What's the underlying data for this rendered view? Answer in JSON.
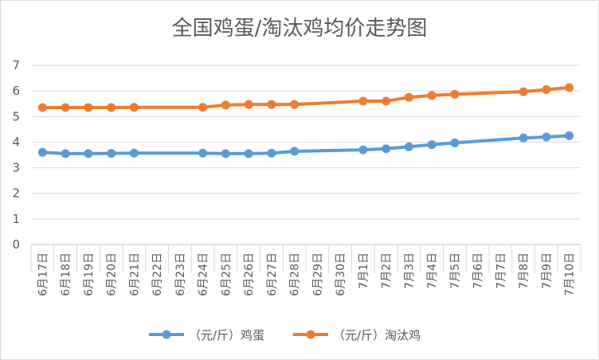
{
  "chart_data": {
    "type": "line",
    "title": "全国鸡蛋/淘汰鸡均价走势图",
    "xlabel": "",
    "ylabel": "",
    "ylim": [
      0,
      7
    ],
    "yticks": [
      0,
      1,
      2,
      3,
      4,
      5,
      6,
      7
    ],
    "grid": true,
    "legend_position": "bottom",
    "categories": [
      "6月17日",
      "6月18日",
      "6月19日",
      "6月20日",
      "6月21日",
      "6月22日",
      "6月23日",
      "6月24日",
      "6月25日",
      "6月26日",
      "6月27日",
      "6月28日",
      "6月29日",
      "6月30日",
      "7月1日",
      "7月2日",
      "7月3日",
      "7月4日",
      "7月5日",
      "7月6日",
      "7月7日",
      "7月8日",
      "7月9日",
      "7月10日"
    ],
    "series": [
      {
        "name": "（元/斤）鸡蛋",
        "color": "#5b9bd5",
        "values": [
          3.6,
          3.55,
          3.55,
          3.56,
          3.57,
          null,
          null,
          3.57,
          3.55,
          3.55,
          3.57,
          3.64,
          null,
          null,
          3.7,
          3.74,
          3.82,
          3.9,
          3.97,
          null,
          null,
          4.16,
          4.2,
          4.25
        ]
      },
      {
        "name": "（元/斤）淘汰鸡",
        "color": "#ed7d31",
        "values": [
          5.35,
          5.35,
          5.35,
          5.35,
          5.36,
          null,
          null,
          5.36,
          5.45,
          5.47,
          5.47,
          5.47,
          null,
          null,
          5.6,
          5.6,
          5.75,
          5.82,
          5.87,
          null,
          null,
          5.97,
          6.05,
          6.13
        ]
      }
    ]
  }
}
